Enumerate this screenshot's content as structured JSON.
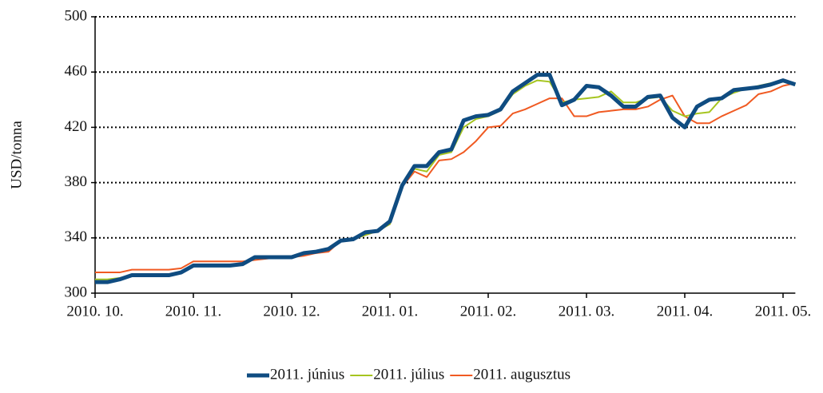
{
  "chart_data": {
    "type": "line",
    "y_label": "USD/tonna",
    "categories": [
      "2010. 10.",
      null,
      null,
      null,
      null,
      null,
      null,
      null,
      "2010. 11.",
      null,
      null,
      null,
      null,
      null,
      null,
      null,
      "2010. 12.",
      null,
      null,
      null,
      null,
      null,
      null,
      null,
      "2011. 01.",
      null,
      null,
      null,
      null,
      null,
      null,
      null,
      "2011. 02.",
      null,
      null,
      null,
      null,
      null,
      null,
      null,
      "2011. 03.",
      null,
      null,
      null,
      null,
      null,
      null,
      null,
      "2011. 04.",
      null,
      null,
      null,
      null,
      null,
      null,
      null,
      "2011. 05.",
      null
    ],
    "series": [
      {
        "name": "2011. június",
        "color": "#0f4c81",
        "values": [
          308,
          308,
          310,
          313,
          313,
          313,
          313,
          315,
          320,
          320,
          320,
          320,
          321,
          326,
          326,
          326,
          326,
          329,
          330,
          332,
          338,
          339,
          344,
          345,
          352,
          378,
          392,
          392,
          402,
          404,
          425,
          428,
          429,
          433,
          446,
          452,
          458,
          458,
          436,
          440,
          450,
          449,
          443,
          435,
          435,
          442,
          443,
          427,
          420,
          435,
          440,
          441,
          447,
          448,
          449,
          451,
          454,
          451
        ]
      },
      {
        "name": "2011. július",
        "color": "#a6c520",
        "values": [
          310,
          310,
          311,
          313,
          313,
          313,
          313,
          315,
          320,
          320,
          320,
          320,
          321,
          325,
          326,
          326,
          326,
          329,
          330,
          332,
          338,
          339,
          342,
          345,
          350,
          377,
          390,
          388,
          400,
          402,
          420,
          426,
          428,
          432,
          444,
          450,
          454,
          453,
          438,
          440,
          441,
          442,
          446,
          438,
          438,
          441,
          442,
          432,
          428,
          430,
          431,
          441,
          445,
          448,
          450,
          452,
          453,
          451
        ]
      },
      {
        "name": "2011. augusztus",
        "color": "#f05a22",
        "values": [
          315,
          315,
          315,
          317,
          317,
          317,
          317,
          318,
          323,
          323,
          323,
          323,
          323,
          324,
          325,
          326,
          326,
          327,
          329,
          330,
          338,
          339,
          342,
          345,
          350,
          377,
          388,
          384,
          396,
          397,
          402,
          410,
          420,
          421,
          430,
          433,
          437,
          441,
          441,
          428,
          428,
          431,
          432,
          433,
          433,
          435,
          440,
          443,
          428,
          423,
          423,
          428,
          432,
          436,
          444,
          446,
          450,
          452
        ]
      }
    ],
    "ylim": [
      300,
      500
    ],
    "yticks": [
      300,
      340,
      380,
      420,
      460,
      500
    ],
    "grid": true,
    "legend": "bottom"
  }
}
